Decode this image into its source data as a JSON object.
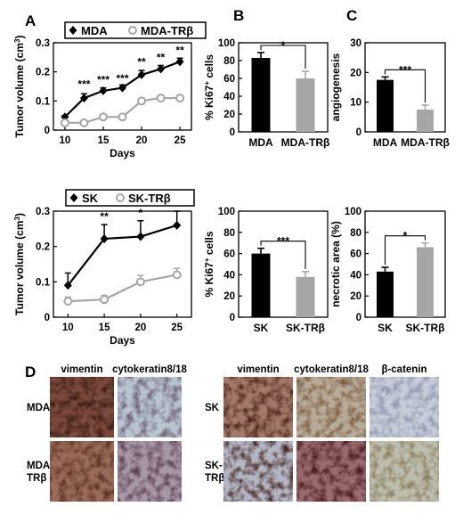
{
  "panel_letters": [
    "A",
    "B",
    "C",
    "D"
  ],
  "colors": {
    "black": "#000000",
    "gray": "#a6a6a6",
    "open_marker": "#a6a6a6"
  },
  "chart_data": [
    {
      "id": "tumor_mda",
      "type": "line",
      "ylabel_main": "Tumor volume (cm",
      "ylabel_sup": "3",
      "ylabel_tail": ")",
      "xlabel": "Days",
      "xticks": [
        10,
        15,
        20,
        25
      ],
      "yticks": [
        0,
        0.1,
        0.2,
        0.3
      ],
      "xlim": [
        8.5,
        26.5
      ],
      "ylim": [
        0,
        0.3
      ],
      "legend": [
        "MDA",
        "MDA-TRβ"
      ],
      "x": [
        10,
        12.5,
        15,
        17.5,
        20,
        22.5,
        25
      ],
      "series": [
        {
          "name": "MDA",
          "values": [
            0.045,
            0.11,
            0.135,
            0.145,
            0.19,
            0.21,
            0.235
          ],
          "err": [
            0.005,
            0.015,
            0.01,
            0.01,
            0.015,
            0.012,
            0.012
          ],
          "marker": "diamond",
          "color": "#000000"
        },
        {
          "name": "MDA-TRβ",
          "values": [
            0.025,
            0.025,
            0.045,
            0.045,
            0.1,
            0.11,
            0.11
          ],
          "err": [
            0.004,
            0.004,
            0.008,
            0.008,
            0.01,
            0.01,
            0.01
          ],
          "marker": "circle-open",
          "color": "#a6a6a6"
        }
      ],
      "annotations": [
        {
          "x": 12.5,
          "y": 0.145,
          "text": "***"
        },
        {
          "x": 15,
          "y": 0.16,
          "text": "***"
        },
        {
          "x": 17.5,
          "y": 0.165,
          "text": "***"
        },
        {
          "x": 20,
          "y": 0.222,
          "text": "**"
        },
        {
          "x": 22.5,
          "y": 0.237,
          "text": "**"
        },
        {
          "x": 25,
          "y": 0.262,
          "text": "**"
        }
      ]
    },
    {
      "id": "tumor_sk",
      "type": "line",
      "ylabel_main": "Tumor volume (cm",
      "ylabel_sup": "3",
      "ylabel_tail": ")",
      "xlabel": "Days",
      "xticks": [
        10,
        15,
        20,
        25
      ],
      "yticks": [
        0,
        0.1,
        0.2,
        0.3
      ],
      "xlim": [
        8,
        27
      ],
      "ylim": [
        0,
        0.3
      ],
      "legend": [
        "SK",
        "SK-TRβ"
      ],
      "x": [
        10,
        15,
        20,
        25
      ],
      "series": [
        {
          "name": "SK",
          "values": [
            0.09,
            0.222,
            0.228,
            0.26
          ],
          "err": [
            0.035,
            0.04,
            0.045,
            0.04
          ],
          "marker": "diamond",
          "color": "#000000"
        },
        {
          "name": "SK-TRβ",
          "values": [
            0.045,
            0.05,
            0.1,
            0.12
          ],
          "err": [
            0.012,
            0.012,
            0.018,
            0.018
          ],
          "marker": "circle-open",
          "color": "#a6a6a6"
        }
      ],
      "annotations": [
        {
          "x": 15,
          "y": 0.275,
          "text": "**"
        },
        {
          "x": 20,
          "y": 0.285,
          "text": "*"
        },
        {
          "x": 25,
          "y": 0.313,
          "text": "*"
        }
      ]
    },
    {
      "id": "ki67_mda",
      "type": "bar",
      "ylabel_main": "% Ki67",
      "ylabel_sup": "+",
      "ylabel_tail": " cells",
      "yticks": [
        0,
        20,
        40,
        60,
        80,
        100
      ],
      "ylim": [
        0,
        100
      ],
      "categories": [
        "MDA",
        "MDA-TRβ"
      ],
      "values": [
        83,
        60
      ],
      "err": [
        6,
        8
      ],
      "bar_colors": [
        "#000000",
        "#a6a6a6"
      ],
      "significance": "*"
    },
    {
      "id": "ki67_sk",
      "type": "bar",
      "ylabel_main": "% Ki67",
      "ylabel_sup": "+",
      "ylabel_tail": " cells",
      "yticks": [
        0,
        20,
        40,
        60,
        80,
        100
      ],
      "ylim": [
        0,
        100
      ],
      "categories": [
        "SK",
        "SK-TRβ"
      ],
      "values": [
        60,
        38
      ],
      "err": [
        5,
        5
      ],
      "bar_colors": [
        "#000000",
        "#a6a6a6"
      ],
      "significance": "***"
    },
    {
      "id": "angiogenesis",
      "type": "bar",
      "ylabel_main": "angiogenesis",
      "ylabel_sup": "",
      "ylabel_tail": "",
      "yticks": [
        0,
        10,
        20,
        30
      ],
      "ylim": [
        0,
        30
      ],
      "categories": [
        "MDA",
        "MDA-TRβ"
      ],
      "values": [
        17.5,
        7.5
      ],
      "err": [
        1,
        1.5
      ],
      "bar_colors": [
        "#000000",
        "#a6a6a6"
      ],
      "significance": "***"
    },
    {
      "id": "necrotic",
      "type": "bar",
      "ylabel_main": "necrotic area (%)",
      "ylabel_sup": "",
      "ylabel_tail": "",
      "yticks": [
        0,
        20,
        40,
        60,
        80,
        100
      ],
      "ylim": [
        0,
        100
      ],
      "categories": [
        "SK",
        "SK-TRβ"
      ],
      "values": [
        43,
        66
      ],
      "err": [
        4,
        4
      ],
      "bar_colors": [
        "#000000",
        "#a6a6a6"
      ],
      "significance": "*"
    }
  ],
  "micrographs": {
    "left": {
      "columns": [
        "vimentin",
        "cytokeratin8/18"
      ],
      "rows": [
        {
          "label_lines": [
            "MDA"
          ],
          "tiles": [
            {
              "bg": "#7a4a3e",
              "stain": "#3a1810"
            },
            {
              "bg": "#b8c4cf",
              "stain": "#6e5f74"
            }
          ]
        },
        {
          "label_lines": [
            "MDA-",
            "TRβ"
          ],
          "tiles": [
            {
              "bg": "#9a6b58",
              "stain": "#5a2f22"
            },
            {
              "bg": "#a898a6",
              "stain": "#5a3f52"
            }
          ]
        }
      ]
    },
    "right": {
      "columns": [
        "vimentin",
        "cytokeratin8/18",
        "β-catenin"
      ],
      "rows": [
        {
          "label_lines": [
            "SK"
          ],
          "tiles": [
            {
              "bg": "#a27a6a",
              "stain": "#4a2015"
            },
            {
              "bg": "#b8aa9a",
              "stain": "#7a5a3a"
            },
            {
              "bg": "#c6ccd8",
              "stain": "#8e98b0"
            }
          ]
        },
        {
          "label_lines": [
            "SK-",
            "TRβ"
          ],
          "tiles": [
            {
              "bg": "#b3b6c6",
              "stain": "#4a2a22"
            },
            {
              "bg": "#9a6a6e",
              "stain": "#4a1a1a"
            },
            {
              "bg": "#bdbfae",
              "stain": "#8a7a5a"
            }
          ]
        }
      ]
    }
  }
}
